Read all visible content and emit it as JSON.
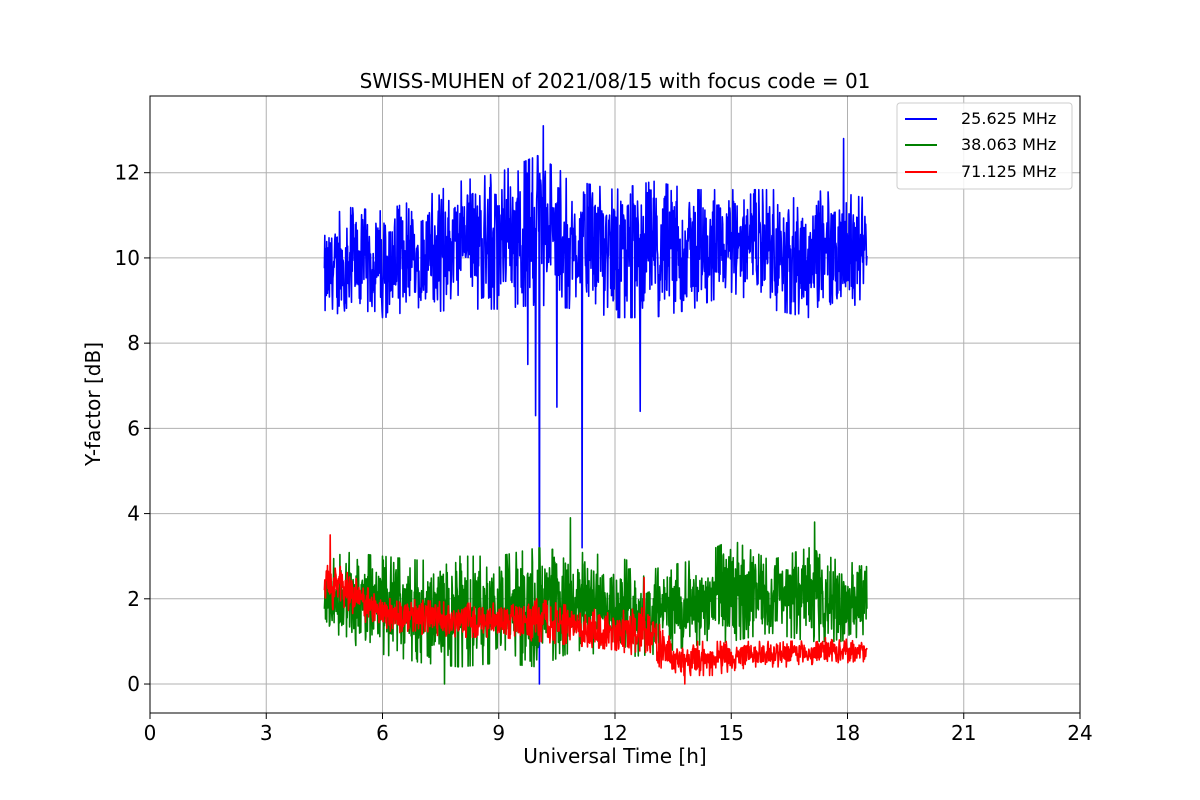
{
  "chart_data": {
    "type": "line",
    "title": "SWISS-MUHEN of 2021/08/15 with focus code = 01",
    "xlabel": "Universal Time [h]",
    "ylabel": "Y-factor [dB]",
    "xlim": [
      0,
      24
    ],
    "ylim": [
      -0.68,
      13.8
    ],
    "xticks": [
      0,
      3,
      6,
      9,
      12,
      15,
      18,
      21,
      24
    ],
    "yticks": [
      0,
      2,
      4,
      6,
      8,
      10,
      12
    ],
    "grid": true,
    "legend_position": "top-right",
    "series": [
      {
        "name": "25.625 MHz",
        "color": "#0000ff",
        "x_range": [
          4.5,
          18.5
        ],
        "envelope": [
          {
            "x": 4.5,
            "low": 8.3,
            "high": 10.7
          },
          {
            "x": 5.0,
            "low": 8.5,
            "high": 11.2
          },
          {
            "x": 6.0,
            "low": 8.6,
            "high": 11.1
          },
          {
            "x": 7.0,
            "low": 8.7,
            "high": 11.4
          },
          {
            "x": 8.0,
            "low": 8.8,
            "high": 11.8
          },
          {
            "x": 9.0,
            "low": 8.8,
            "high": 12.0
          },
          {
            "x": 10.0,
            "low": 8.9,
            "high": 12.4
          },
          {
            "x": 11.0,
            "low": 8.8,
            "high": 11.8
          },
          {
            "x": 12.0,
            "low": 8.6,
            "high": 11.6
          },
          {
            "x": 13.0,
            "low": 8.6,
            "high": 11.8
          },
          {
            "x": 14.0,
            "low": 8.8,
            "high": 11.6
          },
          {
            "x": 15.0,
            "low": 9.2,
            "high": 11.6
          },
          {
            "x": 16.0,
            "low": 8.8,
            "high": 11.6
          },
          {
            "x": 17.0,
            "low": 8.6,
            "high": 11.6
          },
          {
            "x": 18.0,
            "low": 8.7,
            "high": 11.5
          },
          {
            "x": 18.5,
            "low": 9.2,
            "high": 11.4
          }
        ],
        "dips": [
          {
            "x": 9.75,
            "y": 7.5
          },
          {
            "x": 9.95,
            "y": 6.3
          },
          {
            "x": 10.05,
            "y": 0.0
          },
          {
            "x": 10.5,
            "y": 6.5
          },
          {
            "x": 11.15,
            "y": 3.2
          },
          {
            "x": 12.65,
            "y": 6.4
          }
        ],
        "peaks": [
          {
            "x": 10.15,
            "y": 13.1
          },
          {
            "x": 17.9,
            "y": 12.8
          }
        ]
      },
      {
        "name": "38.063 MHz",
        "color": "#008000",
        "x_range": [
          4.5,
          18.5
        ],
        "envelope": [
          {
            "x": 4.5,
            "low": 1.2,
            "high": 2.8
          },
          {
            "x": 5.0,
            "low": 1.0,
            "high": 3.1
          },
          {
            "x": 6.0,
            "low": 0.7,
            "high": 3.0
          },
          {
            "x": 7.0,
            "low": 0.5,
            "high": 2.9
          },
          {
            "x": 8.0,
            "low": 0.4,
            "high": 3.0
          },
          {
            "x": 9.0,
            "low": 0.5,
            "high": 3.0
          },
          {
            "x": 10.0,
            "low": 0.4,
            "high": 3.2
          },
          {
            "x": 11.0,
            "low": 0.8,
            "high": 3.1
          },
          {
            "x": 12.0,
            "low": 0.6,
            "high": 3.0
          },
          {
            "x": 13.0,
            "low": 0.7,
            "high": 2.7
          },
          {
            "x": 14.0,
            "low": 0.9,
            "high": 2.9
          },
          {
            "x": 15.0,
            "low": 1.0,
            "high": 3.4
          },
          {
            "x": 16.0,
            "low": 1.2,
            "high": 2.9
          },
          {
            "x": 17.0,
            "low": 1.0,
            "high": 3.2
          },
          {
            "x": 18.0,
            "low": 1.0,
            "high": 2.8
          },
          {
            "x": 18.5,
            "low": 1.2,
            "high": 3.0
          }
        ],
        "dips": [
          {
            "x": 7.6,
            "y": 0.0
          }
        ],
        "peaks": [
          {
            "x": 10.85,
            "y": 3.9
          },
          {
            "x": 17.15,
            "y": 3.8
          }
        ]
      },
      {
        "name": "71.125 MHz",
        "color": "#ff0000",
        "x_range": [
          4.5,
          18.5
        ],
        "envelope": [
          {
            "x": 4.5,
            "low": 1.7,
            "high": 2.9
          },
          {
            "x": 5.0,
            "low": 1.8,
            "high": 2.8
          },
          {
            "x": 5.8,
            "low": 1.3,
            "high": 2.1
          },
          {
            "x": 6.5,
            "low": 1.2,
            "high": 2.0
          },
          {
            "x": 8.0,
            "low": 1.1,
            "high": 1.9
          },
          {
            "x": 9.0,
            "low": 1.1,
            "high": 1.9
          },
          {
            "x": 10.0,
            "low": 1.0,
            "high": 2.0
          },
          {
            "x": 11.0,
            "low": 0.9,
            "high": 1.8
          },
          {
            "x": 12.0,
            "low": 0.8,
            "high": 1.7
          },
          {
            "x": 12.8,
            "low": 0.6,
            "high": 1.8
          },
          {
            "x": 13.5,
            "low": 0.2,
            "high": 1.0
          },
          {
            "x": 14.5,
            "low": 0.2,
            "high": 1.0
          },
          {
            "x": 15.5,
            "low": 0.4,
            "high": 1.0
          },
          {
            "x": 16.5,
            "low": 0.4,
            "high": 1.0
          },
          {
            "x": 17.5,
            "low": 0.5,
            "high": 1.1
          },
          {
            "x": 18.5,
            "low": 0.5,
            "high": 1.0
          }
        ],
        "dips": [
          {
            "x": 13.8,
            "y": 0.0
          }
        ],
        "peaks": [
          {
            "x": 4.65,
            "y": 3.5
          },
          {
            "x": 12.75,
            "y": 2.5
          }
        ]
      }
    ]
  }
}
